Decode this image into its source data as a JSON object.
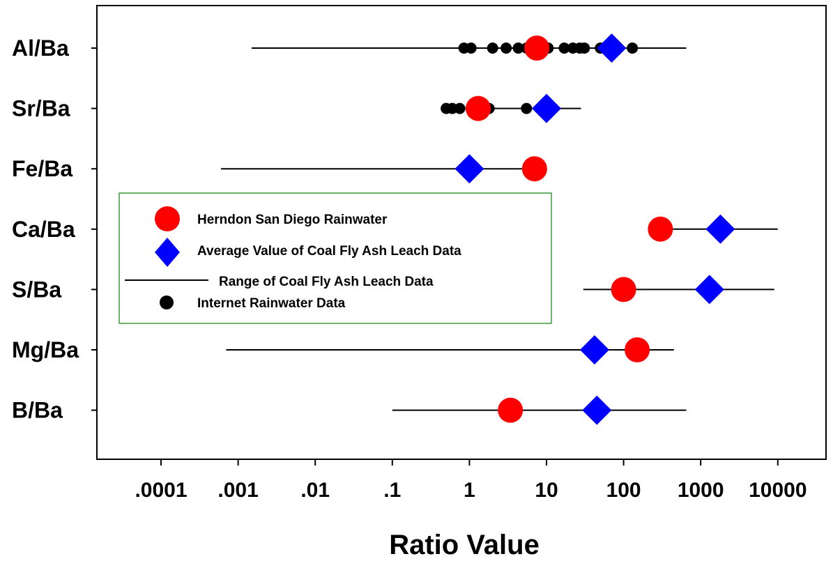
{
  "chart_data": {
    "type": "scatter",
    "title": "",
    "xlabel": "Ratio Value",
    "ylabel": "",
    "xscale": "log",
    "xlim": [
      1e-05,
      30000
    ],
    "x_tick_values": [
      0.0001,
      0.001,
      0.01,
      0.1,
      1,
      10,
      100,
      1000,
      10000
    ],
    "x_tick_labels": [
      ".0001",
      ".001",
      ".01",
      ".1",
      "1",
      "10",
      "100",
      "1000",
      "10000"
    ],
    "categories": [
      "Al/Ba",
      "Sr/Ba",
      "Fe/Ba",
      "Ca/Ba",
      "S/Ba",
      "Mg/Ba",
      "B/Ba"
    ],
    "grid": false,
    "legend": {
      "placement": "center-left",
      "border_color": "#3a9a3a",
      "entries": [
        "Herndon San Diego Rainwater",
        "Average Value of Coal Fly Ash Leach Data",
        "Range of Coal Fly Ash Leach Data",
        "Internet Rainwater Data"
      ]
    },
    "colors": {
      "herndon": "#ff0000",
      "average": "#0000ff",
      "range": "#000000",
      "internet": "#000000"
    },
    "series": [
      {
        "name": "Herndon San Diego Rainwater",
        "marker": "circle",
        "values": [
          7.5,
          1.3,
          7,
          300,
          100,
          150,
          3.4
        ]
      },
      {
        "name": "Average Value of Coal Fly Ash Leach Data",
        "marker": "diamond",
        "values": [
          70,
          10,
          1,
          1800,
          1300,
          42,
          45
        ]
      },
      {
        "name": "Range of Coal Fly Ash Leach Data",
        "marker": "line",
        "ranges": [
          [
            0.0015,
            650
          ],
          [
            0.9,
            28
          ],
          [
            0.0006,
            10
          ],
          [
            400,
            10000
          ],
          [
            30,
            9000
          ],
          [
            0.0007,
            450
          ],
          [
            0.1,
            650
          ]
        ]
      },
      {
        "name": "Internet Rainwater Data",
        "marker": "dot",
        "points": [
          [
            0.85,
            1.05,
            2,
            3,
            4.3,
            5.5,
            6.5,
            7.5,
            8.8,
            10.5,
            17,
            22,
            27,
            31,
            50,
            65,
            130
          ],
          [
            0.5,
            0.6,
            0.75,
            1.05,
            1.8,
            5.5,
            9
          ],
          [],
          [],
          [],
          [],
          []
        ]
      }
    ]
  }
}
